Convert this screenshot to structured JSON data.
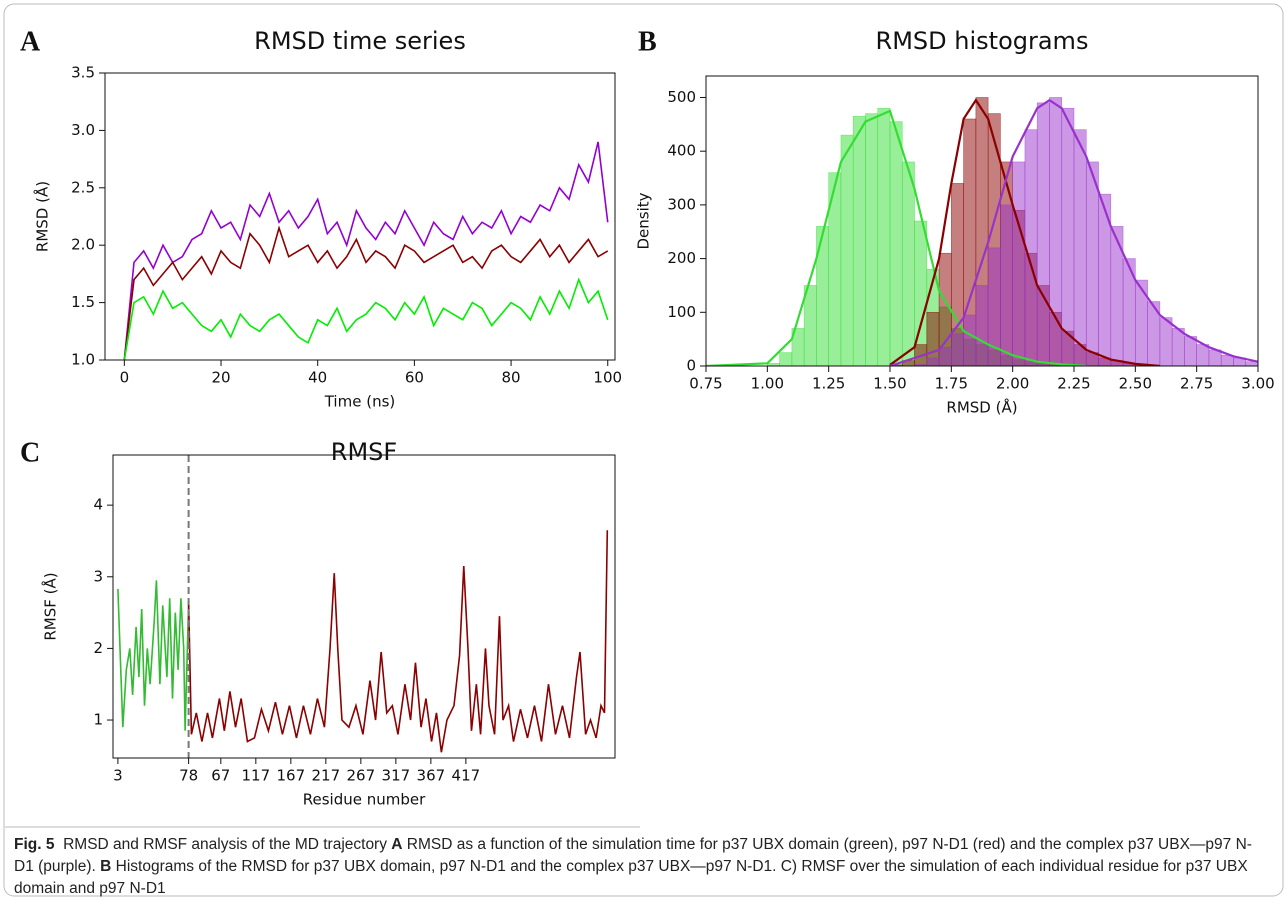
{
  "chart_data": [
    {
      "type": "line",
      "panel": "A",
      "title": "RMSD time series",
      "xlabel": "Time (ns)",
      "ylabel": "RMSD (Å)",
      "xlim": [
        -4,
        101.5
      ],
      "xticks": [
        0,
        20,
        40,
        60,
        80,
        100
      ],
      "ylim": [
        1,
        3.5
      ],
      "yticks": [
        {
          "value": 1,
          "label": "1.0"
        },
        1.5,
        {
          "value": 2,
          "label": "2.0"
        },
        2.5,
        {
          "value": 3,
          "label": "3.0"
        },
        3.5
      ],
      "x": [
        0,
        2,
        4,
        6,
        8,
        10,
        12,
        14,
        16,
        18,
        20,
        22,
        24,
        26,
        28,
        30,
        32,
        34,
        36,
        38,
        40,
        42,
        44,
        46,
        48,
        50,
        52,
        54,
        56,
        58,
        60,
        62,
        64,
        66,
        68,
        70,
        72,
        74,
        76,
        78,
        80,
        82,
        84,
        86,
        88,
        90,
        92,
        94,
        96,
        98,
        100
      ],
      "series": [
        {
          "color": "#9400d3",
          "values": [
            1.0,
            1.85,
            1.95,
            1.8,
            2.0,
            1.85,
            1.9,
            2.05,
            2.1,
            2.3,
            2.15,
            2.2,
            2.05,
            2.35,
            2.25,
            2.45,
            2.2,
            2.3,
            2.15,
            2.25,
            2.4,
            2.1,
            2.2,
            2.0,
            2.3,
            2.15,
            2.05,
            2.2,
            2.1,
            2.3,
            2.15,
            2.0,
            2.2,
            2.1,
            2.05,
            2.25,
            2.1,
            2.2,
            2.15,
            2.3,
            2.1,
            2.25,
            2.2,
            2.35,
            2.3,
            2.5,
            2.4,
            2.7,
            2.55,
            2.9,
            2.2
          ]
        },
        {
          "color": "#8b0000",
          "values": [
            1.0,
            1.7,
            1.8,
            1.65,
            1.75,
            1.85,
            1.7,
            1.8,
            1.9,
            1.75,
            1.95,
            1.85,
            1.8,
            2.1,
            2.0,
            1.85,
            2.15,
            1.9,
            1.95,
            2.0,
            1.85,
            1.95,
            1.8,
            1.9,
            2.05,
            1.85,
            1.95,
            1.9,
            1.8,
            2.0,
            1.95,
            1.85,
            1.9,
            1.95,
            2.0,
            1.85,
            1.9,
            1.8,
            1.95,
            2.0,
            1.9,
            1.85,
            1.95,
            2.05,
            1.9,
            2.0,
            1.85,
            1.95,
            2.05,
            1.9,
            1.95
          ]
        },
        {
          "color": "#00ee00",
          "values": [
            1.0,
            1.5,
            1.55,
            1.4,
            1.6,
            1.45,
            1.5,
            1.4,
            1.3,
            1.25,
            1.35,
            1.2,
            1.4,
            1.3,
            1.25,
            1.35,
            1.4,
            1.3,
            1.2,
            1.15,
            1.35,
            1.3,
            1.45,
            1.25,
            1.35,
            1.4,
            1.5,
            1.45,
            1.35,
            1.5,
            1.4,
            1.55,
            1.3,
            1.45,
            1.4,
            1.35,
            1.5,
            1.45,
            1.3,
            1.4,
            1.5,
            1.45,
            1.35,
            1.55,
            1.4,
            1.6,
            1.45,
            1.7,
            1.5,
            1.6,
            1.35
          ]
        }
      ]
    },
    {
      "type": "histogram",
      "panel": "B",
      "title": "RMSD histograms",
      "xlabel": "RMSD (Å)",
      "ylabel": "Density",
      "xlim": [
        0.75,
        3
      ],
      "xticks": [
        0.75,
        {
          "value": 1,
          "label": "1.00"
        },
        1.25,
        {
          "value": 1.5,
          "label": "1.50"
        },
        1.75,
        {
          "value": 2,
          "label": "2.00"
        },
        2.25,
        {
          "value": 2.5,
          "label": "2.50"
        },
        2.75,
        {
          "value": 3,
          "label": "3.00"
        }
      ],
      "ylim": [
        0,
        540
      ],
      "yticks": [
        0,
        100,
        200,
        300,
        400,
        500
      ],
      "series": [
        {
          "color": "#33dd33",
          "bins": [
            1.0,
            1.05,
            1.1,
            1.15,
            1.2,
            1.25,
            1.3,
            1.35,
            1.4,
            1.45,
            1.5,
            1.55,
            1.6,
            1.65,
            1.7,
            1.75,
            1.8,
            1.85,
            1.9,
            1.95,
            2.0,
            2.05,
            2.1,
            2.15,
            2.2
          ],
          "values": [
            5,
            25,
            70,
            150,
            260,
            360,
            430,
            465,
            470,
            480,
            455,
            380,
            270,
            180,
            110,
            70,
            50,
            40,
            30,
            20,
            12,
            8,
            5,
            2
          ],
          "kde_x": [
            0.75,
            1.0,
            1.1,
            1.2,
            1.3,
            1.4,
            1.5,
            1.6,
            1.7,
            1.8,
            1.9,
            2.0,
            2.1,
            2.2,
            2.3
          ],
          "kde_values": [
            0,
            5,
            50,
            200,
            380,
            455,
            475,
            330,
            140,
            65,
            40,
            20,
            8,
            3,
            0
          ]
        },
        {
          "color": "#8b0000",
          "bins": [
            1.5,
            1.55,
            1.6,
            1.65,
            1.7,
            1.75,
            1.8,
            1.85,
            1.9,
            1.95,
            2.0,
            2.05,
            2.1,
            2.15,
            2.2,
            2.25,
            2.3,
            2.35,
            2.4,
            2.45,
            2.5,
            2.55,
            2.6
          ],
          "values": [
            2,
            10,
            40,
            100,
            210,
            340,
            460,
            500,
            470,
            380,
            290,
            210,
            150,
            100,
            65,
            40,
            25,
            15,
            10,
            5,
            3,
            1
          ],
          "kde_x": [
            1.5,
            1.6,
            1.7,
            1.75,
            1.8,
            1.85,
            1.9,
            2.0,
            2.1,
            2.2,
            2.3,
            2.4,
            2.5,
            2.6
          ],
          "kde_values": [
            2,
            35,
            200,
            340,
            460,
            495,
            460,
            300,
            150,
            70,
            30,
            12,
            4,
            0
          ]
        },
        {
          "color": "#9932cc",
          "bins": [
            1.6,
            1.65,
            1.7,
            1.75,
            1.8,
            1.85,
            1.9,
            1.95,
            2.0,
            2.05,
            2.1,
            2.15,
            2.2,
            2.25,
            2.3,
            2.35,
            2.4,
            2.45,
            2.5,
            2.55,
            2.6,
            2.65,
            2.7,
            2.75,
            2.8,
            2.85,
            2.9,
            2.95,
            3.0
          ],
          "values": [
            3,
            15,
            35,
            60,
            95,
            150,
            220,
            300,
            380,
            440,
            490,
            500,
            480,
            440,
            380,
            320,
            260,
            200,
            160,
            120,
            90,
            70,
            55,
            40,
            30,
            20,
            15,
            8
          ],
          "kde_x": [
            1.5,
            1.7,
            1.8,
            1.9,
            2.0,
            2.1,
            2.15,
            2.2,
            2.3,
            2.4,
            2.5,
            2.6,
            2.7,
            2.8,
            2.9,
            3.0
          ],
          "kde_values": [
            0,
            30,
            90,
            230,
            390,
            480,
            495,
            480,
            390,
            260,
            160,
            95,
            60,
            35,
            18,
            8
          ]
        }
      ]
    },
    {
      "type": "line",
      "panel": "C",
      "title": "RMSF",
      "xlabel": "Residue number",
      "ylabel": "RMSF (Å)",
      "xlim": [
        -7,
        710
      ],
      "xticks": [
        {
          "value": 0,
          "label": "3"
        },
        {
          "value": 101,
          "label": "78"
        },
        {
          "value": 147,
          "label": "67"
        },
        {
          "value": 197,
          "label": "117"
        },
        {
          "value": 247,
          "label": "167"
        },
        {
          "value": 297,
          "label": "217"
        },
        {
          "value": 347,
          "label": "267"
        },
        {
          "value": 397,
          "label": "317"
        },
        {
          "value": 447,
          "label": "367"
        },
        {
          "value": 497,
          "label": "417"
        }
      ],
      "ylim": [
        0.47,
        4.7
      ],
      "yticks": [
        1,
        2,
        3,
        4
      ],
      "vline": 101,
      "series": [
        {
          "color": "#33bb33",
          "x": [
            0,
            7,
            12,
            17,
            21,
            26,
            30,
            34,
            38,
            42,
            46,
            52,
            55,
            60,
            64,
            70,
            74,
            78,
            82,
            86,
            90,
            94,
            96,
            101
          ],
          "values": [
            2.83,
            0.9,
            1.7,
            2.0,
            1.35,
            2.3,
            1.6,
            2.55,
            1.2,
            2.0,
            1.5,
            2.4,
            2.95,
            1.5,
            2.6,
            1.6,
            2.7,
            1.3,
            2.5,
            1.7,
            2.7,
            2.0,
            0.85,
            2.65
          ]
        },
        {
          "color": "#8b0000",
          "x": [
            101,
            105,
            112,
            120,
            128,
            135,
            145,
            152,
            160,
            168,
            176,
            185,
            195,
            205,
            215,
            225,
            235,
            245,
            255,
            265,
            275,
            285,
            295,
            303,
            309,
            314,
            320,
            330,
            340,
            350,
            360,
            368,
            376,
            384,
            392,
            400,
            410,
            418,
            425,
            433,
            440,
            448,
            455,
            462,
            470,
            480,
            488,
            494,
            500,
            505,
            512,
            518,
            525,
            530,
            538,
            545,
            550,
            558,
            565,
            575,
            585,
            595,
            605,
            615,
            625,
            635,
            645,
            655,
            660,
            668,
            675,
            683,
            690,
            695,
            699
          ],
          "values": [
            2.65,
            0.8,
            1.1,
            0.7,
            1.1,
            0.75,
            1.3,
            0.85,
            1.4,
            0.9,
            1.3,
            0.7,
            0.75,
            1.15,
            0.85,
            1.25,
            0.8,
            1.2,
            0.75,
            1.2,
            0.8,
            1.3,
            0.9,
            2.0,
            3.05,
            2.0,
            1.0,
            0.9,
            1.2,
            0.8,
            1.55,
            1.0,
            1.95,
            1.1,
            1.2,
            0.8,
            1.5,
            1.0,
            1.8,
            0.9,
            1.3,
            0.7,
            1.1,
            0.55,
            1.0,
            1.2,
            1.9,
            3.15,
            2.0,
            0.85,
            1.5,
            0.8,
            2.0,
            1.2,
            0.8,
            2.45,
            1.0,
            1.2,
            0.7,
            1.15,
            0.75,
            1.2,
            0.7,
            1.5,
            0.8,
            1.2,
            0.75,
            1.6,
            1.95,
            0.8,
            1.0,
            0.75,
            1.2,
            1.1,
            3.65
          ]
        }
      ]
    }
  ],
  "caption": [
    {
      "text": "Fig. 5",
      "bold": true
    },
    {
      "text": "  RMSD and RMSF analysis of the MD trajectory ",
      "bold": false
    },
    {
      "text": "A",
      "bold": true
    },
    {
      "text": " RMSD as a function of the simulation time for p37 UBX domain (green), p97 N-D1 (red) and the complex p37 UBX—p97 N-D1 (purple). ",
      "bold": false
    },
    {
      "text": "B",
      "bold": true
    },
    {
      "text": " Histograms of the RMSD for p37 UBX domain, p97 N-D1 and the complex p37 UBX—p97 N-D1. C) RMSF over the simulation of each individual residue for p37 UBX domain and p97 N-D1",
      "bold": false
    }
  ]
}
